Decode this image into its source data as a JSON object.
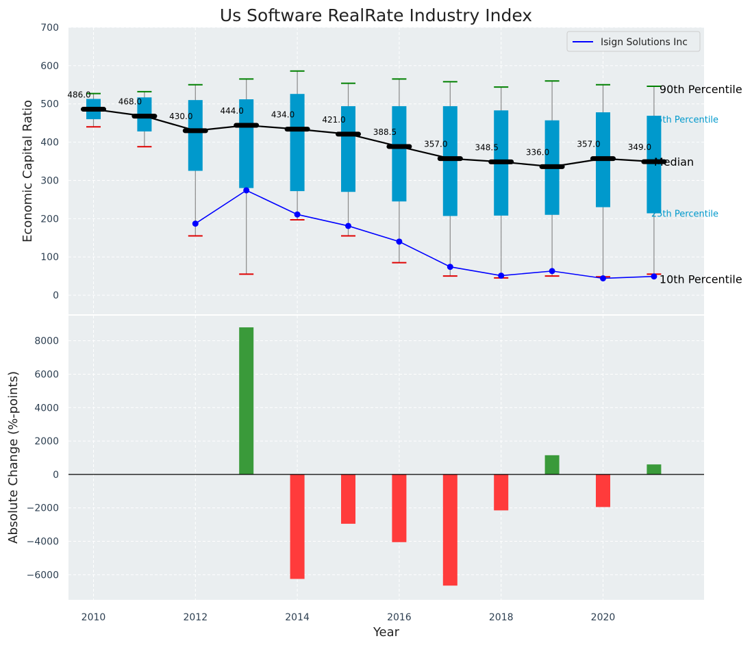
{
  "chart_data": [
    {
      "type": "box",
      "title": "Us Software RealRate Industry Index",
      "ylabel": "Economic Capital Ratio",
      "ylim": [
        -50,
        700
      ],
      "yticks": [
        0,
        100,
        200,
        300,
        400,
        500,
        600,
        700
      ],
      "grid": true,
      "legend": {
        "position": "top-right",
        "entries": [
          "Isign Solutions Inc"
        ]
      },
      "years": [
        2010,
        2011,
        2012,
        2013,
        2014,
        2015,
        2016,
        2017,
        2018,
        2019,
        2020,
        2021
      ],
      "p10": [
        440,
        388,
        155,
        55,
        197,
        155,
        85,
        50,
        45,
        50,
        48,
        55
      ],
      "p25": [
        460,
        428,
        325,
        280,
        272,
        270,
        245,
        207,
        208,
        210,
        230,
        214
      ],
      "median": [
        486.0,
        468.0,
        430.0,
        444.0,
        434.0,
        421.0,
        388.5,
        357.0,
        348.5,
        336.0,
        357.0,
        349.0
      ],
      "median_labels": [
        "486.0",
        "468.0",
        "430.0",
        "444.0",
        "434.0",
        "421.0",
        "388.5",
        "357.0",
        "348.5",
        "336.0",
        "357.0",
        "349.0"
      ],
      "p75": [
        513,
        517,
        510,
        512,
        526,
        494,
        494,
        494,
        483,
        457,
        478,
        469
      ],
      "p90": [
        527,
        532,
        550,
        565,
        586,
        554,
        565,
        558,
        544,
        560,
        550,
        546
      ],
      "series": [
        {
          "name": "Isign Solutions Inc",
          "x": [
            2012,
            2013,
            2014,
            2015,
            2016,
            2017,
            2018,
            2019,
            2020,
            2021
          ],
          "values": [
            187,
            274,
            211,
            181,
            140,
            74,
            51,
            63,
            44,
            49
          ],
          "color": "#0000ff"
        }
      ],
      "annotations": {
        "p90": "90th Percentile",
        "p75": "75th Percentile",
        "median": "Median",
        "p25": "25th Percentile",
        "p10": "10th Percentile"
      },
      "colors": {
        "box": "#0099cc",
        "median": "#000000",
        "p90_cap": "#008000",
        "p10_cap": "#e00000",
        "background": "#eaeef0"
      }
    },
    {
      "type": "bar",
      "xlabel": "Year",
      "ylabel": "Absolute Change (%-points)",
      "ylim": [
        -7500,
        9500
      ],
      "yticks": [
        -6000,
        -4000,
        -2000,
        0,
        2000,
        4000,
        6000,
        8000
      ],
      "ytick_labels": [
        "−6000",
        "−4000",
        "−2000",
        "0",
        "2000",
        "4000",
        "6000",
        "8000"
      ],
      "xticks": [
        2010,
        2012,
        2014,
        2016,
        2018,
        2020
      ],
      "x": [
        2013,
        2014,
        2015,
        2016,
        2017,
        2018,
        2019,
        2020,
        2021
      ],
      "values": [
        8800,
        -6250,
        -2950,
        -4050,
        -6650,
        -2150,
        1150,
        -1950,
        600
      ],
      "colors": {
        "positive": "#3a9a3a",
        "negative": "#ff3b3b"
      }
    }
  ]
}
